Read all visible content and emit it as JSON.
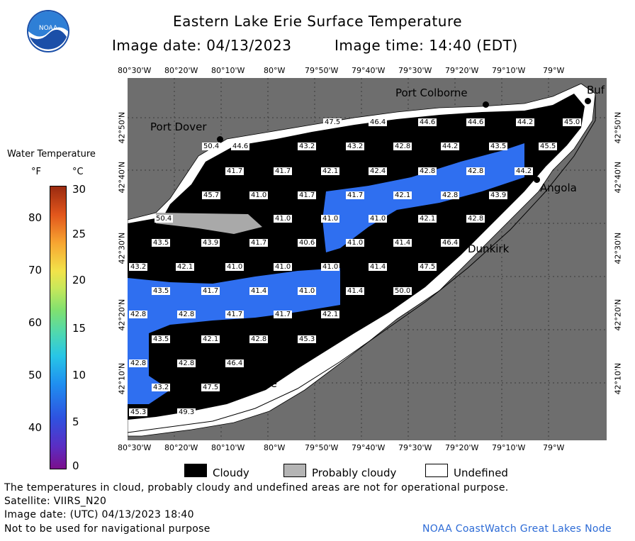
{
  "header": {
    "title": "Eastern Lake Erie Surface Temperature",
    "image_date": "Image date: 04/13/2023",
    "image_time": "Image time: 14:40 (EDT)",
    "logo_text": "NOAA"
  },
  "scale": {
    "title": "Water Temperature",
    "f_unit": "°F",
    "c_unit": "°C",
    "f_ticks": [
      "80",
      "70",
      "60",
      "50",
      "40"
    ],
    "c_ticks": [
      "30",
      "25",
      "20",
      "15",
      "10",
      "5",
      "0"
    ]
  },
  "map": {
    "lon_labels": [
      "80°30'W",
      "80°20'W",
      "80°10'W",
      "80°W",
      "79°50'W",
      "79°40'W",
      "79°30'W",
      "79°20'W",
      "79°10'W",
      "79°W"
    ],
    "lat_labels": [
      "42°50'N",
      "42°40'N",
      "42°30'N",
      "42°20'N",
      "42°10'N"
    ],
    "cities": [
      "Port Colborne",
      "Port Dover",
      "Angola",
      "Dunkirk",
      "Erie",
      "Buf"
    ],
    "temps": [
      {
        "v": "47.5"
      },
      {
        "v": "46.4"
      },
      {
        "v": "44.6"
      },
      {
        "v": "44.6"
      },
      {
        "v": "44.2"
      },
      {
        "v": "45.0"
      },
      {
        "v": "50.4"
      },
      {
        "v": "44.6"
      },
      {
        "v": "43.2"
      },
      {
        "v": "43.2"
      },
      {
        "v": "42.8"
      },
      {
        "v": "44.2"
      },
      {
        "v": "43.5"
      },
      {
        "v": "45.5"
      },
      {
        "v": "41.7"
      },
      {
        "v": "41.7"
      },
      {
        "v": "42.1"
      },
      {
        "v": "42.4"
      },
      {
        "v": "42.8"
      },
      {
        "v": "42.8"
      },
      {
        "v": "44.2"
      },
      {
        "v": "45.7"
      },
      {
        "v": "41.0"
      },
      {
        "v": "41.7"
      },
      {
        "v": "41.7"
      },
      {
        "v": "42.1"
      },
      {
        "v": "42.8"
      },
      {
        "v": "43.9"
      },
      {
        "v": "50.4"
      },
      {
        "v": "41.0"
      },
      {
        "v": "41.0"
      },
      {
        "v": "41.0"
      },
      {
        "v": "42.1"
      },
      {
        "v": "42.8"
      },
      {
        "v": "43.5"
      },
      {
        "v": "43.9"
      },
      {
        "v": "41.7"
      },
      {
        "v": "40.6"
      },
      {
        "v": "41.0"
      },
      {
        "v": "41.4"
      },
      {
        "v": "46.4"
      },
      {
        "v": "43.2"
      },
      {
        "v": "42.1"
      },
      {
        "v": "41.0"
      },
      {
        "v": "41.0"
      },
      {
        "v": "41.0"
      },
      {
        "v": "41.4"
      },
      {
        "v": "47.5"
      },
      {
        "v": "43.5"
      },
      {
        "v": "41.7"
      },
      {
        "v": "41.4"
      },
      {
        "v": "41.0"
      },
      {
        "v": "41.4"
      },
      {
        "v": "50.0"
      },
      {
        "v": "42.8"
      },
      {
        "v": "42.8"
      },
      {
        "v": "41.7"
      },
      {
        "v": "41.7"
      },
      {
        "v": "42.1"
      },
      {
        "v": "43.5"
      },
      {
        "v": "42.1"
      },
      {
        "v": "42.8"
      },
      {
        "v": "45.3"
      },
      {
        "v": "42.8"
      },
      {
        "v": "42.8"
      },
      {
        "v": "46.4"
      },
      {
        "v": "43.2"
      },
      {
        "v": "47.5"
      },
      {
        "v": "45.3"
      },
      {
        "v": "49.3"
      }
    ]
  },
  "legend": {
    "cloudy": "Cloudy",
    "probably_cloudy": "Probably cloudy",
    "undefined": "Undefined"
  },
  "footer": {
    "line1": "The temperatures in cloud, probably cloudy and undefined areas are not for operational purpose.",
    "line2": "Satellite: VIIRS_N20",
    "line3": "Image date: (UTC) 04/13/2023  18:40",
    "line4": "Not to be used for navigational purpose",
    "credit": "NOAA CoastWatch Great Lakes Node"
  },
  "colors": {
    "land": "#6e6e6e",
    "cloud": "#000000",
    "water_41": "#2f6ff0",
    "accent_credit": "#2d6bd6"
  }
}
